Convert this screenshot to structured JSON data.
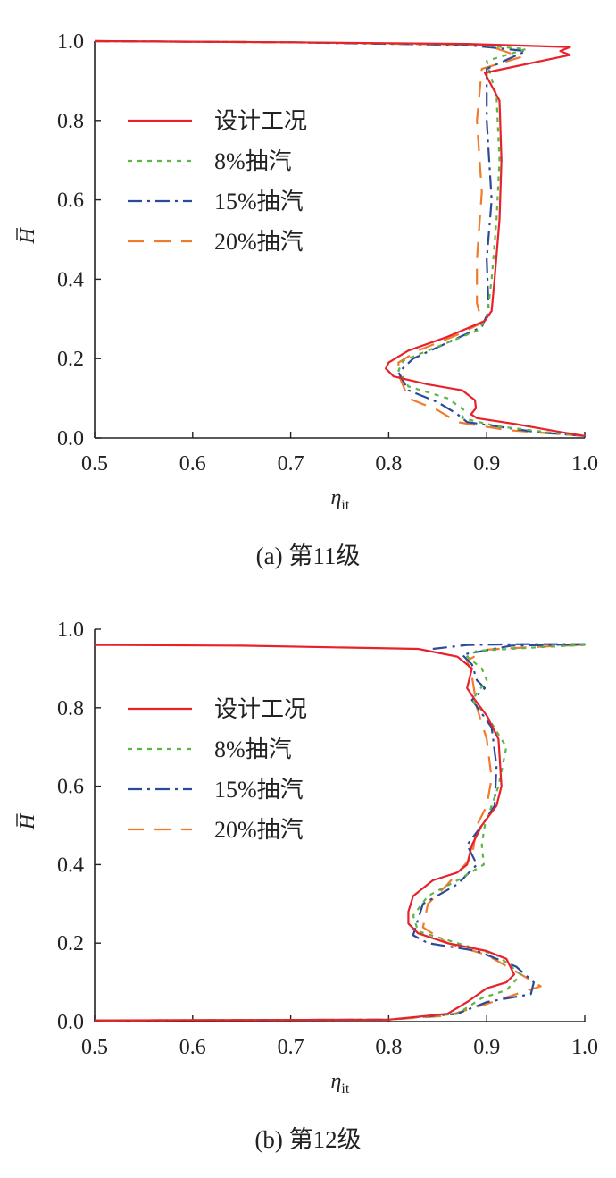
{
  "colors": {
    "design": "#e8212a",
    "ext8": "#5db545",
    "ext15": "#2a4a9a",
    "ext20": "#f07a2d"
  },
  "chart_data": [
    {
      "type": "line",
      "caption": "(a)  第11级",
      "xlabel_symbol": "η",
      "xlabel_sub": "it",
      "ylabel_symbol": "H",
      "xlim": [
        0.5,
        1.0
      ],
      "ylim": [
        0.0,
        1.0
      ],
      "xticks": [
        "0.5",
        "0.6",
        "0.7",
        "0.8",
        "0.9",
        "1.0"
      ],
      "yticks": [
        "0.0",
        "0.2",
        "0.4",
        "0.6",
        "0.8",
        "1.0"
      ],
      "grid": false,
      "legend_position": "upper-left",
      "series": [
        {
          "name": "设计工况",
          "style": "solid",
          "color_key": "design",
          "points": [
            [
              0.5,
              1.0
            ],
            [
              0.7,
              0.997
            ],
            [
              0.88,
              0.993
            ],
            [
              0.985,
              0.985
            ],
            [
              0.975,
              0.975
            ],
            [
              0.985,
              0.965
            ],
            [
              0.898,
              0.92
            ],
            [
              0.913,
              0.85
            ],
            [
              0.915,
              0.7
            ],
            [
              0.913,
              0.55
            ],
            [
              0.908,
              0.4
            ],
            [
              0.905,
              0.32
            ],
            [
              0.898,
              0.295
            ],
            [
              0.86,
              0.255
            ],
            [
              0.82,
              0.22
            ],
            [
              0.8,
              0.19
            ],
            [
              0.797,
              0.175
            ],
            [
              0.805,
              0.155
            ],
            [
              0.84,
              0.135
            ],
            [
              0.875,
              0.12
            ],
            [
              0.888,
              0.095
            ],
            [
              0.889,
              0.075
            ],
            [
              0.884,
              0.06
            ],
            [
              0.89,
              0.05
            ],
            [
              0.93,
              0.035
            ],
            [
              0.975,
              0.015
            ],
            [
              1.0,
              0.005
            ]
          ]
        },
        {
          "name": "8%抽汽",
          "style": "dotted",
          "color_key": "ext8",
          "points": [
            [
              0.5,
              1.0
            ],
            [
              0.7,
              0.997
            ],
            [
              0.88,
              0.992
            ],
            [
              0.94,
              0.98
            ],
            [
              0.9,
              0.95
            ],
            [
              0.91,
              0.86
            ],
            [
              0.913,
              0.7
            ],
            [
              0.91,
              0.55
            ],
            [
              0.905,
              0.4
            ],
            [
              0.9,
              0.3
            ],
            [
              0.89,
              0.27
            ],
            [
              0.84,
              0.22
            ],
            [
              0.815,
              0.195
            ],
            [
              0.81,
              0.17
            ],
            [
              0.82,
              0.13
            ],
            [
              0.86,
              0.1
            ],
            [
              0.877,
              0.07
            ],
            [
              0.875,
              0.05
            ],
            [
              0.91,
              0.03
            ],
            [
              0.97,
              0.012
            ],
            [
              1.0,
              0.005
            ]
          ]
        },
        {
          "name": "15%抽汽",
          "style": "dashdot",
          "color_key": "ext15",
          "points": [
            [
              0.5,
              1.0
            ],
            [
              0.7,
              0.997
            ],
            [
              0.88,
              0.99
            ],
            [
              0.94,
              0.975
            ],
            [
              0.9,
              0.93
            ],
            [
              0.9,
              0.8
            ],
            [
              0.905,
              0.6
            ],
            [
              0.9,
              0.45
            ],
            [
              0.902,
              0.32
            ],
            [
              0.895,
              0.28
            ],
            [
              0.86,
              0.24
            ],
            [
              0.825,
              0.2
            ],
            [
              0.81,
              0.165
            ],
            [
              0.82,
              0.12
            ],
            [
              0.85,
              0.09
            ],
            [
              0.87,
              0.06
            ],
            [
              0.88,
              0.04
            ],
            [
              0.95,
              0.015
            ],
            [
              1.0,
              0.005
            ]
          ]
        },
        {
          "name": "20%抽汽",
          "style": "dashed",
          "color_key": "ext20",
          "points": [
            [
              0.5,
              1.0
            ],
            [
              0.7,
              0.997
            ],
            [
              0.9,
              0.99
            ],
            [
              0.935,
              0.96
            ],
            [
              0.895,
              0.93
            ],
            [
              0.89,
              0.8
            ],
            [
              0.895,
              0.62
            ],
            [
              0.89,
              0.45
            ],
            [
              0.89,
              0.34
            ],
            [
              0.895,
              0.29
            ],
            [
              0.87,
              0.26
            ],
            [
              0.83,
              0.22
            ],
            [
              0.81,
              0.19
            ],
            [
              0.81,
              0.16
            ],
            [
              0.82,
              0.1
            ],
            [
              0.85,
              0.07
            ],
            [
              0.87,
              0.04
            ],
            [
              0.92,
              0.02
            ],
            [
              1.0,
              0.005
            ]
          ]
        }
      ]
    },
    {
      "type": "line",
      "caption": "(b)  第12级",
      "xlabel_symbol": "η",
      "xlabel_sub": "it",
      "ylabel_symbol": "H",
      "xlim": [
        0.5,
        1.0
      ],
      "ylim": [
        0.0,
        1.0
      ],
      "xticks": [
        "0.5",
        "0.6",
        "0.7",
        "0.8",
        "0.9",
        "1.0"
      ],
      "yticks": [
        "0.0",
        "0.2",
        "0.4",
        "0.6",
        "0.8",
        "1.0"
      ],
      "grid": false,
      "legend_position": "upper-left",
      "series": [
        {
          "name": "设计工况",
          "style": "solid",
          "color_key": "design",
          "points": [
            [
              0.5,
              0.96
            ],
            [
              0.65,
              0.958
            ],
            [
              0.83,
              0.95
            ],
            [
              0.87,
              0.93
            ],
            [
              0.885,
              0.9
            ],
            [
              0.88,
              0.85
            ],
            [
              0.888,
              0.82
            ],
            [
              0.9,
              0.78
            ],
            [
              0.912,
              0.72
            ],
            [
              0.915,
              0.6
            ],
            [
              0.91,
              0.55
            ],
            [
              0.895,
              0.5
            ],
            [
              0.885,
              0.45
            ],
            [
              0.88,
              0.4
            ],
            [
              0.87,
              0.38
            ],
            [
              0.845,
              0.36
            ],
            [
              0.825,
              0.32
            ],
            [
              0.82,
              0.28
            ],
            [
              0.82,
              0.25
            ],
            [
              0.83,
              0.225
            ],
            [
              0.86,
              0.2
            ],
            [
              0.9,
              0.18
            ],
            [
              0.92,
              0.16
            ],
            [
              0.928,
              0.12
            ],
            [
              0.92,
              0.1
            ],
            [
              0.9,
              0.085
            ],
            [
              0.88,
              0.05
            ],
            [
              0.86,
              0.02
            ],
            [
              0.8,
              0.005
            ],
            [
              0.5,
              0.003
            ]
          ]
        },
        {
          "name": "8%抽汽",
          "style": "dotted",
          "color_key": "ext8",
          "points": [
            [
              1.0,
              0.96
            ],
            [
              0.96,
              0.955
            ],
            [
              0.89,
              0.945
            ],
            [
              0.88,
              0.93
            ],
            [
              0.895,
              0.9
            ],
            [
              0.9,
              0.87
            ],
            [
              0.885,
              0.82
            ],
            [
              0.9,
              0.78
            ],
            [
              0.92,
              0.7
            ],
            [
              0.912,
              0.6
            ],
            [
              0.905,
              0.55
            ],
            [
              0.898,
              0.5
            ],
            [
              0.895,
              0.45
            ],
            [
              0.897,
              0.4
            ],
            [
              0.87,
              0.36
            ],
            [
              0.84,
              0.32
            ],
            [
              0.825,
              0.27
            ],
            [
              0.83,
              0.23
            ],
            [
              0.87,
              0.2
            ],
            [
              0.91,
              0.17
            ],
            [
              0.935,
              0.12
            ],
            [
              0.92,
              0.08
            ],
            [
              0.895,
              0.06
            ],
            [
              0.87,
              0.02
            ],
            [
              0.8,
              0.005
            ],
            [
              0.5,
              0.003
            ]
          ]
        },
        {
          "name": "15%抽汽",
          "style": "dashdot",
          "color_key": "ext15",
          "points": [
            [
              0.845,
              0.95
            ],
            [
              0.88,
              0.96
            ],
            [
              0.935,
              0.962
            ],
            [
              1.0,
              0.962
            ],
            [
              0.925,
              0.958
            ],
            [
              0.875,
              0.935
            ],
            [
              0.885,
              0.91
            ],
            [
              0.89,
              0.87
            ],
            [
              0.898,
              0.85
            ],
            [
              0.885,
              0.82
            ],
            [
              0.905,
              0.75
            ],
            [
              0.91,
              0.65
            ],
            [
              0.908,
              0.55
            ],
            [
              0.895,
              0.5
            ],
            [
              0.88,
              0.45
            ],
            [
              0.89,
              0.4
            ],
            [
              0.87,
              0.35
            ],
            [
              0.835,
              0.3
            ],
            [
              0.825,
              0.22
            ],
            [
              0.84,
              0.2
            ],
            [
              0.89,
              0.18
            ],
            [
              0.93,
              0.14
            ],
            [
              0.948,
              0.1
            ],
            [
              0.945,
              0.07
            ],
            [
              0.9,
              0.05
            ],
            [
              0.87,
              0.02
            ],
            [
              0.8,
              0.005
            ],
            [
              0.5,
              0.003
            ]
          ]
        },
        {
          "name": "20%抽汽",
          "style": "dashed",
          "color_key": "ext20",
          "points": [
            [
              0.995,
              0.96
            ],
            [
              0.95,
              0.955
            ],
            [
              0.9,
              0.948
            ],
            [
              0.88,
              0.92
            ],
            [
              0.885,
              0.88
            ],
            [
              0.89,
              0.8
            ],
            [
              0.9,
              0.72
            ],
            [
              0.905,
              0.62
            ],
            [
              0.9,
              0.55
            ],
            [
              0.89,
              0.5
            ],
            [
              0.885,
              0.42
            ],
            [
              0.86,
              0.35
            ],
            [
              0.84,
              0.3
            ],
            [
              0.835,
              0.24
            ],
            [
              0.86,
              0.2
            ],
            [
              0.9,
              0.17
            ],
            [
              0.935,
              0.12
            ],
            [
              0.955,
              0.09
            ],
            [
              0.93,
              0.07
            ],
            [
              0.9,
              0.045
            ],
            [
              0.86,
              0.015
            ],
            [
              0.8,
              0.005
            ],
            [
              0.5,
              0.003
            ]
          ]
        }
      ]
    }
  ]
}
